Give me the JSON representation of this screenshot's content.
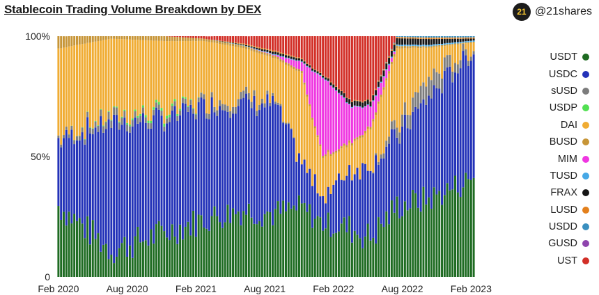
{
  "title": "Stablecoin Trading Volume Breakdown by DEX",
  "brand": {
    "logo_text": "21",
    "handle": "@21shares",
    "logo_icon": "21shares-logo-icon"
  },
  "chart_data": {
    "type": "stacked-bar",
    "stacking": "percent",
    "ylim": [
      0,
      100
    ],
    "y_ticks": [
      {
        "value": 100,
        "label": "100%"
      },
      {
        "value": 50,
        "label": "50%"
      },
      {
        "value": 0,
        "label": "0"
      }
    ],
    "x_ticks": [
      {
        "index": 0,
        "label": "Feb 2020"
      },
      {
        "index": 26,
        "label": "Aug 2020"
      },
      {
        "index": 52,
        "label": "Feb 2021"
      },
      {
        "index": 78,
        "label": "Aug 2021"
      },
      {
        "index": 104,
        "label": "Feb 2022"
      },
      {
        "index": 130,
        "label": "Aug 2022"
      },
      {
        "index": 156,
        "label": "Feb 2023"
      }
    ],
    "bucket": "weekly",
    "start_label": "Feb 2020",
    "end_label": "Feb 2023",
    "anchors": [
      0,
      20,
      40,
      55,
      70,
      82,
      92,
      100,
      110,
      118,
      128,
      140,
      158
    ],
    "legend_position": "right",
    "series": [
      {
        "name": "USDT",
        "color": "#1e6b22",
        "values": [
          29,
          11,
          18,
          24,
          28,
          26,
          31,
          28,
          20,
          16,
          28,
          33,
          42
        ]
      },
      {
        "name": "USDC",
        "color": "#2332b8",
        "values": [
          27,
          51,
          46,
          47,
          44,
          45,
          20,
          15,
          24,
          30,
          27,
          43,
          54
        ]
      },
      {
        "name": "sUSD",
        "color": "#7c7c7c",
        "values": [
          1,
          3,
          2,
          2,
          3,
          1,
          0,
          0,
          0,
          0,
          4,
          8,
          1
        ]
      },
      {
        "name": "USDP",
        "color": "#52e052",
        "values": [
          0,
          0.3,
          1.2,
          0,
          0,
          0,
          0,
          0,
          0,
          0,
          0,
          0,
          0
        ]
      },
      {
        "name": "DAI",
        "color": "#f0ac33",
        "values": [
          36,
          31,
          29,
          25,
          20,
          18,
          40,
          20,
          10,
          14,
          31,
          13,
          1
        ]
      },
      {
        "name": "BUSD",
        "color": "#c79537",
        "values": [
          5,
          1,
          2,
          1,
          1,
          1,
          1,
          1,
          1,
          1,
          1,
          0.6,
          0.3
        ]
      },
      {
        "name": "MIM",
        "color": "#ef37e1",
        "values": [
          0,
          0,
          0,
          0,
          0,
          0.3,
          4,
          40,
          15,
          8,
          0,
          0,
          0
        ]
      },
      {
        "name": "TUSD",
        "color": "#46a8e6",
        "values": [
          0,
          0,
          0,
          0,
          0.2,
          0.3,
          0.3,
          0.4,
          0.3,
          0.3,
          0.5,
          0.6,
          0.5
        ]
      },
      {
        "name": "FRAX",
        "color": "#161616",
        "values": [
          0,
          0,
          0,
          0,
          0.3,
          1,
          1,
          1,
          2,
          2,
          2.5,
          2.5,
          0.7
        ]
      },
      {
        "name": "LUSD",
        "color": "#e3801c",
        "values": [
          0,
          0,
          0,
          0,
          0.4,
          0.5,
          0.4,
          0.3,
          0.3,
          0.3,
          0.5,
          0.6,
          0.5
        ]
      },
      {
        "name": "USDD",
        "color": "#3a8fbf",
        "values": [
          0,
          0,
          0,
          0,
          0,
          0,
          0,
          0,
          0,
          0,
          0.3,
          0.6,
          0.5
        ]
      },
      {
        "name": "GUSD",
        "color": "#8e44ad",
        "values": [
          0,
          0,
          0,
          0,
          0,
          0,
          0,
          0,
          0,
          0,
          0,
          0,
          0
        ]
      },
      {
        "name": "UST",
        "color": "#d22f27",
        "values": [
          0,
          0,
          0,
          1,
          3,
          6,
          10,
          20,
          26,
          26,
          0,
          0,
          0
        ]
      }
    ]
  }
}
